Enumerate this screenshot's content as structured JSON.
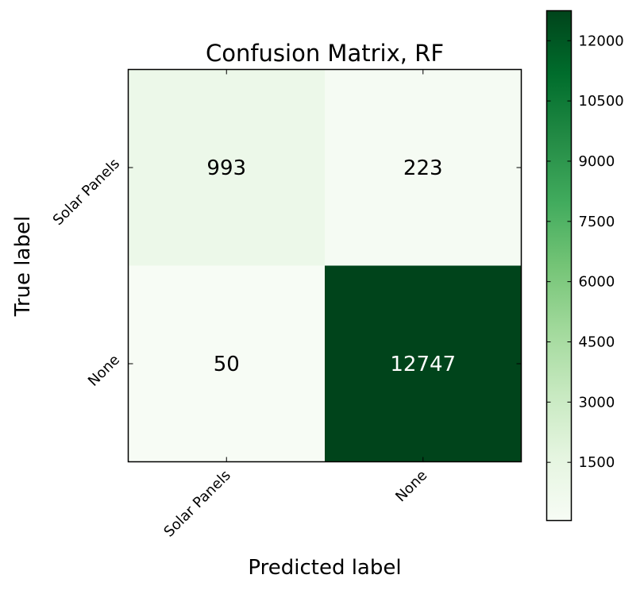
{
  "chart_data": {
    "type": "heatmap",
    "title": "Confusion Matrix, RF",
    "xlabel": "Predicted label",
    "ylabel": "True label",
    "x_categories": [
      "Solar Panels",
      "None"
    ],
    "y_categories": [
      "Solar Panels",
      "None"
    ],
    "values": [
      [
        993,
        223
      ],
      [
        50,
        12747
      ]
    ],
    "value_range": [
      50,
      12747
    ],
    "colormap": "Greens",
    "colorbar_ticks": [
      1500,
      3000,
      4500,
      6000,
      7500,
      9000,
      10500,
      12000
    ],
    "colors": {
      "low": "#f7fcf5",
      "high": "#00441b",
      "text_dark": "#000000",
      "text_light": "#ffffff"
    },
    "grid": false,
    "colorbar_position": "right"
  }
}
